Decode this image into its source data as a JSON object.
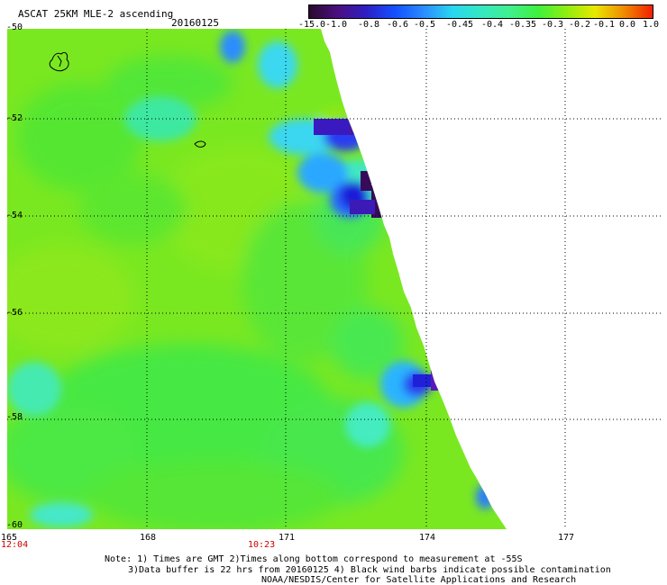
{
  "header": {
    "title": "ASCAT 25KM MLE-2 ascending",
    "date": "20160125"
  },
  "colorbar": {
    "labels": [
      "-15.0",
      "-1.0",
      "-0.8",
      "-0.6",
      "-0.5",
      "-0.45",
      "-0.4",
      "-0.35",
      "-0.3",
      "-0.2",
      "-0.1",
      "0.0",
      "1.0"
    ],
    "colors": [
      "#2a0a2e",
      "#4b0f80",
      "#2d1fc4",
      "#1450ff",
      "#2a8cff",
      "#28d6f0",
      "#35e8c2",
      "#40f090",
      "#3ef03c",
      "#90ee10",
      "#e8e800",
      "#f08a00",
      "#f02000"
    ]
  },
  "map": {
    "lat_labels": [
      "-50",
      "-52",
      "-54",
      "-56",
      "-58",
      "-60"
    ],
    "lon_labels": [
      "165",
      "168",
      "171",
      "174",
      "177"
    ],
    "time_labels": [
      "12:04",
      "10:23"
    ]
  },
  "footer": {
    "line1": "Note: 1) Times are GMT 2)Times along bottom correspond to measurement at -55S",
    "line2": "3)Data buffer is 22 hrs from 20160125 4) Black wind barbs indicate possible contamination",
    "line3": "NOAA/NESDIS/Center for Satellite Applications and Research"
  }
}
